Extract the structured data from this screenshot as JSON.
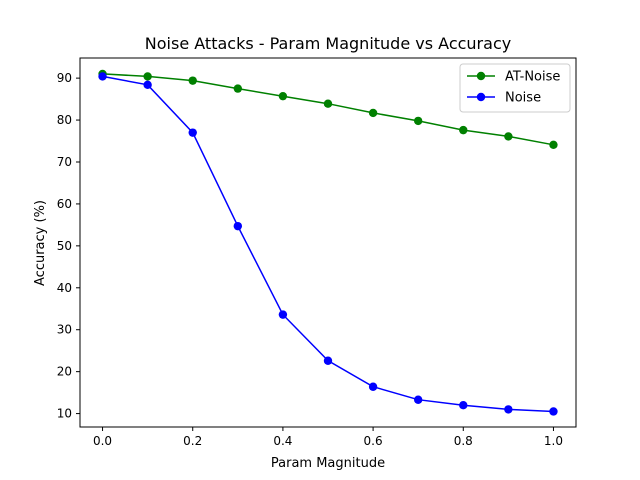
{
  "chart_data": {
    "type": "line",
    "title": "Noise Attacks - Param Magnitude vs Accuracy",
    "xlabel": "Param Magnitude",
    "ylabel": "Accuracy (%)",
    "xlim": [
      -0.05,
      1.05
    ],
    "ylim": [
      6.8,
      94.8
    ],
    "xticks": [
      "0.0",
      "0.2",
      "0.4",
      "0.6",
      "0.8",
      "1.0"
    ],
    "yticks": [
      "10",
      "20",
      "30",
      "40",
      "50",
      "60",
      "70",
      "80",
      "90"
    ],
    "x": [
      0.0,
      0.1,
      0.2,
      0.3,
      0.4,
      0.5,
      0.6,
      0.7,
      0.8,
      0.9,
      1.0
    ],
    "series": [
      {
        "name": "AT-Noise",
        "color": "#008000",
        "values": [
          91.0,
          90.4,
          89.4,
          87.5,
          85.7,
          83.9,
          81.7,
          79.8,
          77.6,
          76.1,
          74.1
        ]
      },
      {
        "name": "Noise",
        "color": "#0000ff",
        "values": [
          90.4,
          88.4,
          77.0,
          54.7,
          33.6,
          22.6,
          16.4,
          13.3,
          12.0,
          11.0,
          10.5
        ]
      }
    ],
    "legend_position": "top-right",
    "grid": false
  }
}
